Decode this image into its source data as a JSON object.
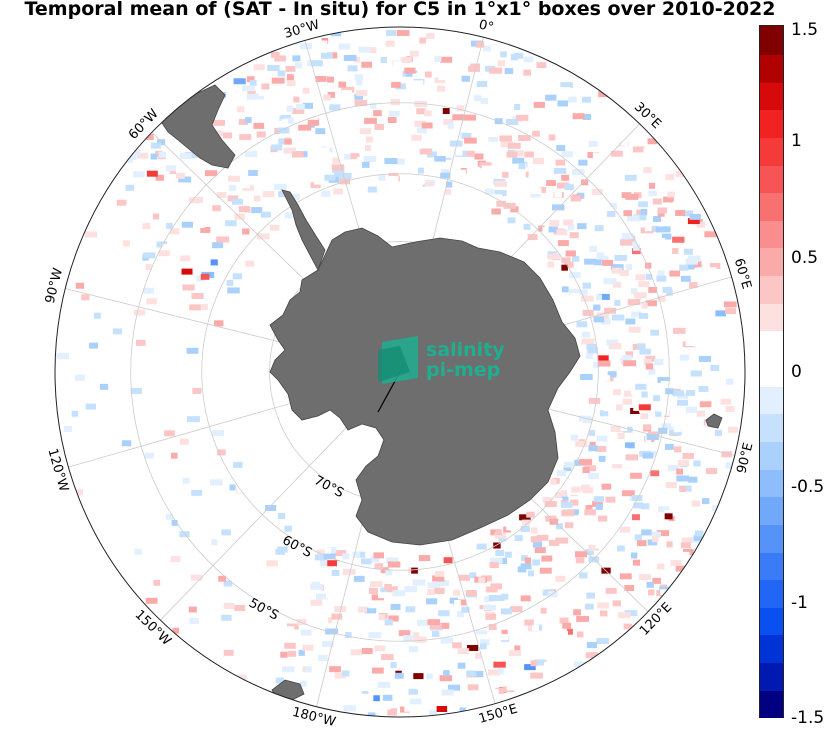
{
  "title": "Temporal mean of (SAT - In situ) for C5 in 1°x1° boxes over 2010-2022",
  "map": {
    "projection": "south-polar-stereographic",
    "center_lat": -90,
    "outer_lat": -40,
    "lat_circles": [
      "50°S",
      "60°S",
      "70°S"
    ],
    "lon_labels": [
      "0°",
      "30°E",
      "60°E",
      "90°E",
      "120°E",
      "150°E",
      "180°W",
      "150°W",
      "120°W",
      "90°W",
      "60°W",
      "30°W"
    ],
    "land_color": "#6e6e6e",
    "grid_color": "#cccccc"
  },
  "logo": {
    "line1": "salinity",
    "line2": "pi-mep",
    "color": "#1fae8f"
  },
  "colorbar": {
    "min": -1.5,
    "max": 1.5,
    "tick_labels": [
      "1.5",
      "1",
      "0.5",
      "0",
      "-0.5",
      "-1",
      "-1.5"
    ],
    "colors": [
      "#000080",
      "#0019b0",
      "#0033d6",
      "#0a4ff0",
      "#2266f5",
      "#3a7cf7",
      "#5593f8",
      "#70a8fa",
      "#8dbdfb",
      "#aad1fc",
      "#c6e1fd",
      "#e1effe",
      "#ffffff",
      "#ffffff",
      "#fde1e1",
      "#fcc6c6",
      "#fbaaaa",
      "#fa8d8d",
      "#f87070",
      "#f75555",
      "#f53a3a",
      "#f02222",
      "#d60a0a",
      "#b00000",
      "#800000"
    ]
  }
}
